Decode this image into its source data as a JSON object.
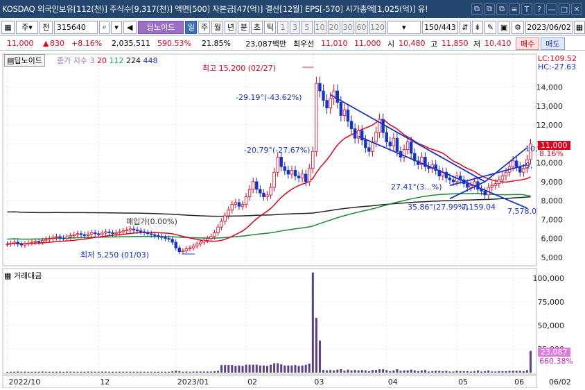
{
  "titlebar": {
    "text": "KOSDAQ 외국인보유[112(천)] 주식수[9,317(천)] 액면[500] 자본금[47(억)] 결산[12월] EPS[-570] 시가총액[1,025(억)] 유!",
    "buttons": [
      "⧉",
      "⧉",
      "⧉",
      "≡",
      "T",
      "?",
      "—",
      "□",
      "✕"
    ]
  },
  "toolbar": {
    "market": "주",
    "prefix": "전",
    "code": "315640",
    "indicator_tag": "딥노이드",
    "periods": [
      "일",
      "주",
      "월",
      "년",
      "분",
      "초",
      "틱"
    ],
    "active_period": "일",
    "intervals": [
      "1",
      "3",
      "5",
      "10",
      "20",
      "30",
      "60",
      "120"
    ],
    "range": "150/443",
    "date": "2023/06/02"
  },
  "quote": {
    "price": "11,000",
    "change": "830",
    "change_pct": "+8.16%",
    "volume": "2,035,511",
    "volume_ratio": "590.53%",
    "turnover": "21.85%",
    "amount": "23,087백만",
    "best_ask_label": "최우선",
    "ask": "11,010",
    "bid": "11,000",
    "open_label": "시",
    "open": "10,480",
    "high_label": "고",
    "high": "11,850",
    "low_label": "저",
    "low": "10,410",
    "sell_label": "매수",
    "buy_label": "매도"
  },
  "price_panel": {
    "name_tag": "딥노이드",
    "legend_label": "종가 지수 3",
    "ma_values": [
      "20",
      "112",
      "224",
      "448"
    ],
    "ma_colors": [
      "#e0001b",
      "#1aa05a",
      "#0a0a0a",
      "#1732c9"
    ],
    "lc": "LC:109.52",
    "hc": "HC:-27.63",
    "current_price": "11,000",
    "current_pct": "8.16%",
    "annotations": {
      "high": "최고 15,200 (02/27)",
      "low": "최저 5,250 (01/03)",
      "ma_cross": "매입가(0.00%)",
      "trend1": "-29.19°(-43.62%)",
      "trend2": "-20.79°(-27.67%)",
      "trend3": "27.41°(3...%)",
      "trend4": "35.86°(27.99%)",
      "val1": "7,159.04",
      "val2": "7,578.0",
      "edge1": "10,",
      "edge2": "9,"
    }
  },
  "volume_panel": {
    "title": "거래대금",
    "last_value": "23,087",
    "last_pct": "660.38%"
  },
  "chart_data": {
    "type": "candlestick",
    "x_labels": [
      "2022/10",
      "12",
      "2023/01",
      "02",
      "03",
      "04",
      "05",
      "06",
      "06/02"
    ],
    "y_ticks": [
      5000,
      6000,
      7000,
      8000,
      9000,
      10000,
      11000,
      12000,
      13000,
      14000
    ],
    "y_range": [
      4700,
      15600
    ],
    "vol_ticks": [
      25000,
      50000,
      75000,
      100000
    ],
    "vol_range": [
      0,
      108000
    ],
    "high": 15200,
    "low": 5250,
    "last_close": 11000,
    "closes": [
      5700,
      5750,
      5800,
      5700,
      5650,
      5720,
      5760,
      5800,
      5850,
      5800,
      5900,
      5950,
      6000,
      6050,
      6100,
      6020,
      6000,
      6080,
      6150,
      6200,
      6250,
      6200,
      6150,
      6230,
      6300,
      6250,
      6200,
      6280,
      6350,
      6300,
      6250,
      6300,
      6350,
      6400,
      6450,
      6500,
      6450,
      6400,
      6350,
      6300,
      6250,
      6200,
      6150,
      6100,
      6050,
      6000,
      5950,
      5800,
      5500,
      5300,
      5350,
      5450,
      5500,
      5600,
      5700,
      5800,
      5900,
      6000,
      6100,
      6300,
      6600,
      6900,
      7200,
      7500,
      7800,
      7900,
      7700,
      7800,
      8200,
      8600,
      9000,
      8600,
      8400,
      8200,
      8300,
      8700,
      9500,
      10300,
      9800,
      9600,
      9400,
      9600,
      9300,
      9200,
      9400,
      9000,
      9700,
      10600,
      14200,
      13800,
      13300,
      12900,
      13400,
      13800,
      13200,
      12500,
      12800,
      12200,
      11800,
      11300,
      11700,
      11200,
      10800,
      10600,
      11100,
      11600,
      12300,
      11600,
      11100,
      10900,
      11300,
      10600,
      10300,
      10700,
      11100,
      10500,
      10100,
      9900,
      10300,
      9800,
      9700,
      9900,
      9600,
      9300,
      9500,
      9200,
      9100,
      9000,
      9300,
      9100,
      8900,
      8700,
      8800,
      9000,
      8600,
      8500,
      8300,
      8700,
      8800,
      8900,
      9100,
      9300,
      9500,
      9800,
      10100,
      9800,
      9500,
      9700,
      10170,
      11000
    ]
  }
}
